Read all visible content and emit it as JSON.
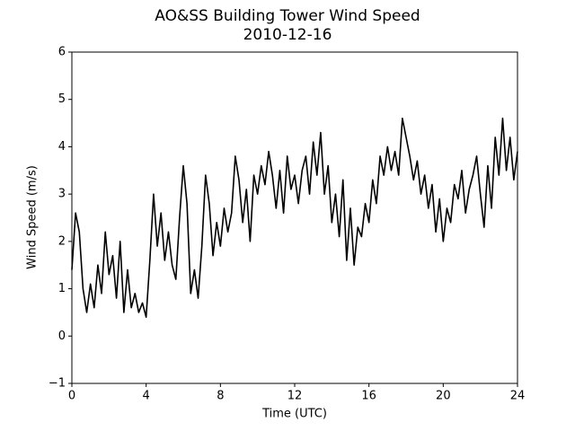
{
  "chart_data": {
    "type": "line",
    "title": "AO&SS Building Tower Wind Speed",
    "subtitle": "2010-12-16",
    "x_label": "Time (UTC)",
    "y_label": "Wind Speed (m/s)",
    "xlim": [
      0,
      24
    ],
    "xticks": [
      0,
      4,
      8,
      12,
      16,
      20,
      24
    ],
    "ylim": [
      -1,
      6
    ],
    "yticks": [
      {
        "value": -1,
        "label": "−1"
      },
      0,
      1,
      2,
      3,
      4,
      5,
      6
    ],
    "grid": false,
    "x": [
      0,
      0.2,
      0.4,
      0.6,
      0.8,
      1,
      1.2,
      1.4,
      1.6,
      1.8,
      2,
      2.2,
      2.4,
      2.6,
      2.8,
      3,
      3.2,
      3.4,
      3.6,
      3.8,
      4,
      4.2,
      4.4,
      4.6,
      4.8,
      5,
      5.2,
      5.4,
      5.6,
      5.8,
      6,
      6.2,
      6.4,
      6.6,
      6.8,
      7,
      7.2,
      7.4,
      7.6,
      7.8,
      8,
      8.2,
      8.4,
      8.6,
      8.8,
      9,
      9.2,
      9.4,
      9.6,
      9.8,
      10,
      10.2,
      10.4,
      10.6,
      10.8,
      11,
      11.2,
      11.4,
      11.6,
      11.8,
      12,
      12.2,
      12.4,
      12.6,
      12.8,
      13,
      13.2,
      13.4,
      13.6,
      13.8,
      14,
      14.2,
      14.4,
      14.6,
      14.8,
      15,
      15.2,
      15.4,
      15.6,
      15.8,
      16,
      16.2,
      16.4,
      16.6,
      16.8,
      17,
      17.2,
      17.4,
      17.6,
      17.8,
      18,
      18.2,
      18.4,
      18.6,
      18.8,
      19,
      19.2,
      19.4,
      19.6,
      19.8,
      20,
      20.2,
      20.4,
      20.6,
      20.8,
      21,
      21.2,
      21.4,
      21.6,
      21.8,
      22,
      22.2,
      22.4,
      22.6,
      22.8,
      23,
      23.2,
      23.4,
      23.6,
      23.8,
      24
    ],
    "series": [
      {
        "color": "#000000",
        "values": [
          1.4,
          2.6,
          2.2,
          1.0,
          0.5,
          1.1,
          0.6,
          1.5,
          0.9,
          2.2,
          1.3,
          1.7,
          0.8,
          2.0,
          0.5,
          1.4,
          0.6,
          0.9,
          0.5,
          0.7,
          0.4,
          1.6,
          3.0,
          1.9,
          2.6,
          1.6,
          2.2,
          1.5,
          1.2,
          2.5,
          3.6,
          2.8,
          0.9,
          1.4,
          0.8,
          1.9,
          3.4,
          2.8,
          1.7,
          2.4,
          1.9,
          2.7,
          2.2,
          2.6,
          3.8,
          3.3,
          2.4,
          3.1,
          2.0,
          3.4,
          3.0,
          3.6,
          3.2,
          3.9,
          3.4,
          2.7,
          3.5,
          2.6,
          3.8,
          3.1,
          3.4,
          2.8,
          3.5,
          3.8,
          3.0,
          4.1,
          3.4,
          4.3,
          3.0,
          3.6,
          2.4,
          3.0,
          2.1,
          3.3,
          1.6,
          2.7,
          1.5,
          2.3,
          2.1,
          2.8,
          2.4,
          3.3,
          2.8,
          3.8,
          3.4,
          4.0,
          3.5,
          3.9,
          3.4,
          4.6,
          4.2,
          3.8,
          3.3,
          3.7,
          3.0,
          3.4,
          2.7,
          3.2,
          2.2,
          2.9,
          2.0,
          2.7,
          2.4,
          3.2,
          2.9,
          3.5,
          2.6,
          3.1,
          3.4,
          3.8,
          3.0,
          2.3,
          3.6,
          2.7,
          4.2,
          3.4,
          4.6,
          3.5,
          4.2,
          3.3,
          3.9
        ]
      }
    ]
  }
}
